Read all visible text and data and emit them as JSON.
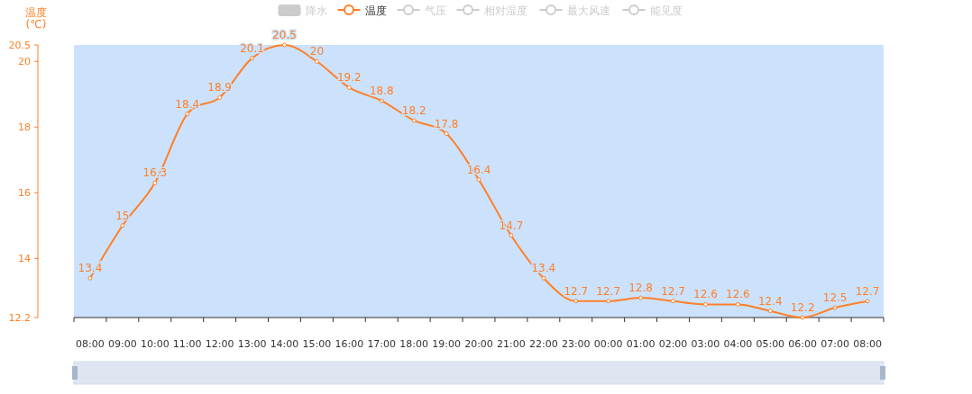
{
  "chart_data": {
    "type": "line",
    "ylabel": "温度\n(℃)",
    "legend": "top",
    "categories": [
      "08:00",
      "09:00",
      "10:00",
      "11:00",
      "12:00",
      "13:00",
      "14:00",
      "15:00",
      "16:00",
      "17:00",
      "18:00",
      "19:00",
      "20:00",
      "21:00",
      "22:00",
      "23:00",
      "00:00",
      "01:00",
      "02:00",
      "03:00",
      "04:00",
      "05:00",
      "06:00",
      "07:00",
      "08:00"
    ],
    "series": [
      {
        "name": "降水",
        "type": "bar",
        "color": "#cccccc",
        "values": [
          null,
          null,
          null,
          null,
          null,
          null,
          null,
          null,
          null,
          null,
          null,
          null,
          null,
          null,
          null,
          null,
          null,
          null,
          null,
          null,
          null,
          null,
          null,
          null,
          null
        ]
      },
      {
        "name": "温度",
        "color": "#ff7f27",
        "values": [
          13.4,
          15,
          16.3,
          18.4,
          18.9,
          20.1,
          20.5,
          20,
          19.2,
          18.8,
          18.2,
          17.8,
          16.4,
          14.7,
          13.4,
          12.7,
          12.7,
          12.8,
          12.7,
          12.6,
          12.6,
          12.4,
          12.2,
          12.5,
          12.7
        ]
      },
      {
        "name": "气压",
        "color": "#cccccc",
        "values": [
          null,
          null,
          null,
          null,
          null,
          null,
          null,
          null,
          null,
          null,
          null,
          null,
          null,
          null,
          null,
          null,
          null,
          null,
          null,
          null,
          null,
          null,
          null,
          null,
          null
        ]
      },
      {
        "name": "相对湿度",
        "color": "#cccccc",
        "values": [
          null,
          null,
          null,
          null,
          null,
          null,
          null,
          null,
          null,
          null,
          null,
          null,
          null,
          null,
          null,
          null,
          null,
          null,
          null,
          null,
          null,
          null,
          null,
          null,
          null
        ]
      },
      {
        "name": "最大风速",
        "color": "#cccccc",
        "values": [
          null,
          null,
          null,
          null,
          null,
          null,
          null,
          null,
          null,
          null,
          null,
          null,
          null,
          null,
          null,
          null,
          null,
          null,
          null,
          null,
          null,
          null,
          null,
          null,
          null
        ]
      },
      {
        "name": "能见度",
        "color": "#cccccc",
        "values": [
          null,
          null,
          null,
          null,
          null,
          null,
          null,
          null,
          null,
          null,
          null,
          null,
          null,
          null,
          null,
          null,
          null,
          null,
          null,
          null,
          null,
          null,
          null,
          null,
          null
        ]
      }
    ],
    "ylim": [
      12.2,
      20.5
    ],
    "yticks": [
      12.2,
      14,
      16,
      18,
      20,
      20.5
    ],
    "marker": "circle",
    "data_labels": true,
    "grid": false
  }
}
